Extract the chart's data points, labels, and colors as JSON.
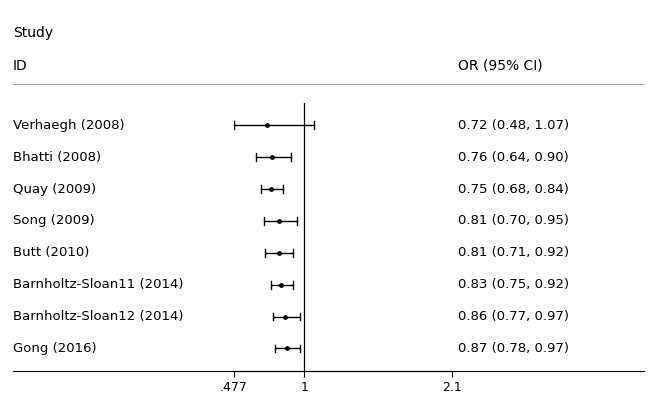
{
  "studies": [
    {
      "label": "Verhaegh (2008)",
      "or": 0.72,
      "ci_low": 0.48,
      "ci_high": 1.07
    },
    {
      "label": "Bhatti (2008)",
      "or": 0.76,
      "ci_low": 0.64,
      "ci_high": 0.9
    },
    {
      "label": "Quay (2009)",
      "or": 0.75,
      "ci_low": 0.68,
      "ci_high": 0.84
    },
    {
      "label": "Song (2009)",
      "or": 0.81,
      "ci_low": 0.7,
      "ci_high": 0.95
    },
    {
      "label": "Butt (2010)",
      "or": 0.81,
      "ci_low": 0.71,
      "ci_high": 0.92
    },
    {
      "label": "Barnholtz-Sloan11 (2014)",
      "or": 0.83,
      "ci_low": 0.75,
      "ci_high": 0.92
    },
    {
      "label": "Barnholtz-Sloan12 (2014)",
      "or": 0.86,
      "ci_low": 0.77,
      "ci_high": 0.97
    },
    {
      "label": "Gong (2016)",
      "or": 0.87,
      "ci_low": 0.78,
      "ci_high": 0.97
    }
  ],
  "or_labels": [
    "0.72 (0.48, 1.07)",
    "0.76 (0.64, 0.90)",
    "0.75 (0.68, 0.84)",
    "0.81 (0.70, 0.95)",
    "0.81 (0.71, 0.92)",
    "0.83 (0.75, 0.92)",
    "0.86 (0.77, 0.97)",
    "0.87 (0.78, 0.97)"
  ],
  "xmin": 0.477,
  "xmax": 2.1,
  "xref": 1.0,
  "xtick_vals": [
    0.477,
    1.0,
    2.1
  ],
  "xtick_labels": [
    ".477",
    "1",
    "2.1"
  ],
  "header_study": "Study",
  "header_id": "ID",
  "header_or": "OR (95% CI)",
  "bg_color": "#ffffff",
  "line_color": "#000000",
  "marker_color": "#000000",
  "text_color": "#000000",
  "study_label_fontsize": 9.5,
  "header_fontsize": 10,
  "marker_size": 3.5
}
